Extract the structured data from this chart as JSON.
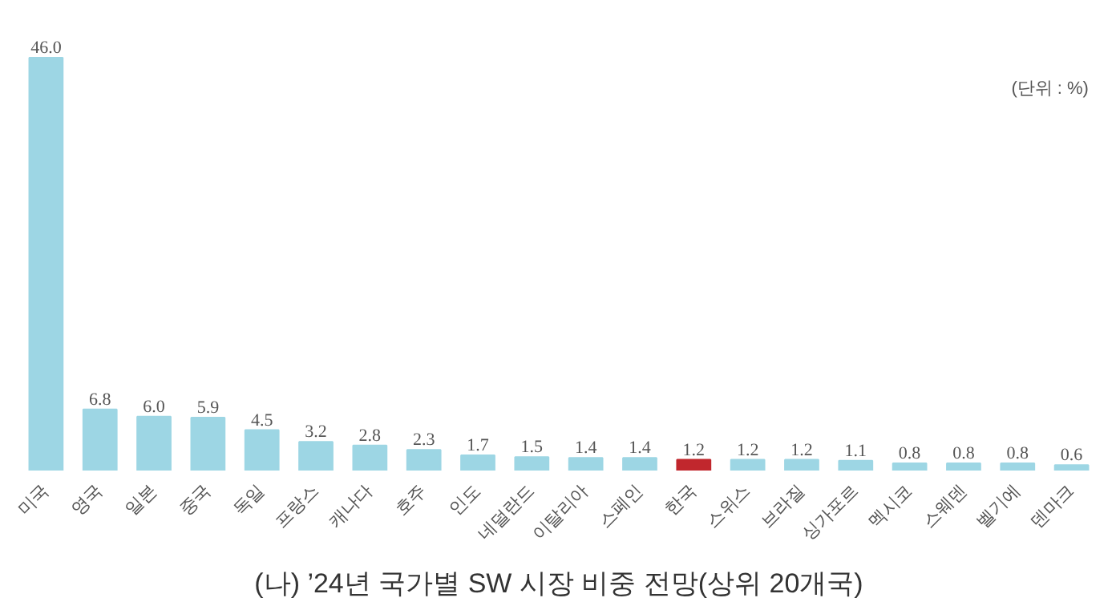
{
  "chart_data": {
    "type": "bar",
    "title": "(나) ’24년 국가별 SW 시장 비중 전망(상위 20개국)",
    "annotations": [
      "(단위 : %)"
    ],
    "categories": [
      "미국",
      "영국",
      "일본",
      "중국",
      "독일",
      "프랑스",
      "캐나다",
      "호주",
      "인도",
      "네덜란드",
      "이탈리아",
      "스페인",
      "한국",
      "스위스",
      "브라질",
      "싱가포르",
      "멕시코",
      "스웨덴",
      "벨기에",
      "덴마크"
    ],
    "values": [
      46.0,
      6.8,
      6.0,
      5.9,
      4.5,
      3.2,
      2.8,
      2.3,
      1.7,
      1.5,
      1.4,
      1.4,
      1.2,
      1.2,
      1.2,
      1.1,
      0.8,
      0.8,
      0.8,
      0.6
    ],
    "value_labels": [
      "46.0",
      "6.8",
      "6.0",
      "5.9",
      "4.5",
      "3.2",
      "2.8",
      "2.3",
      "1.7",
      "1.5",
      "1.4",
      "1.4",
      "1.2",
      "1.2",
      "1.2",
      "1.1",
      "0.8",
      "0.8",
      "0.8",
      "0.6"
    ],
    "colors": [
      "#9dd6e4",
      "#9dd6e4",
      "#9dd6e4",
      "#9dd6e4",
      "#9dd6e4",
      "#9dd6e4",
      "#9dd6e4",
      "#9dd6e4",
      "#9dd6e4",
      "#9dd6e4",
      "#9dd6e4",
      "#9dd6e4",
      "#c1272d",
      "#9dd6e4",
      "#9dd6e4",
      "#9dd6e4",
      "#9dd6e4",
      "#9dd6e4",
      "#9dd6e4",
      "#9dd6e4"
    ],
    "grid": false,
    "tick_labels": "x"
  }
}
